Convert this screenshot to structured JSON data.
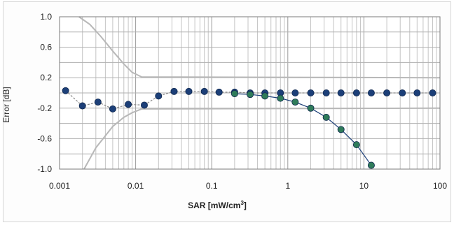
{
  "chart_data": {
    "type": "line",
    "xscale": "log",
    "xlabel": "SAR [mW/cm",
    "xlabel_sup": "3",
    "xlabel_close": "]",
    "ylabel": "Error [dB]",
    "xlim": [
      0.001,
      100
    ],
    "ylim": [
      -1.0,
      1.0
    ],
    "xticks": [
      {
        "v": 0.001,
        "label": "0.001"
      },
      {
        "v": 0.01,
        "label": "0.01"
      },
      {
        "v": 0.1,
        "label": "0.1"
      },
      {
        "v": 1,
        "label": "1"
      },
      {
        "v": 10,
        "label": "10"
      },
      {
        "v": 100,
        "label": "100"
      }
    ],
    "yticks": [
      {
        "v": 1.0,
        "label": "1.0"
      },
      {
        "v": 0.6,
        "label": "0.6"
      },
      {
        "v": 0.2,
        "label": "0.2"
      },
      {
        "v": -0.2,
        "label": "-0.2"
      },
      {
        "v": -0.6,
        "label": "-0.6"
      },
      {
        "v": -1.0,
        "label": "-1.0"
      }
    ],
    "grid": true,
    "series": [
      {
        "role": "limit-upper",
        "color": "#b8b8b8",
        "x": [
          0.0018,
          0.0025,
          0.0035,
          0.005,
          0.007,
          0.009,
          0.012,
          100
        ],
        "y": [
          1.0,
          0.9,
          0.74,
          0.55,
          0.38,
          0.27,
          0.21,
          0.2
        ]
      },
      {
        "role": "limit-lower",
        "color": "#b8b8b8",
        "x": [
          0.0021,
          0.003,
          0.005,
          0.007,
          0.009,
          0.012,
          100
        ],
        "y": [
          -1.0,
          -0.72,
          -0.44,
          -0.32,
          -0.26,
          -0.21,
          -0.2
        ]
      },
      {
        "role": "measured-flat",
        "color": "#1c3f78",
        "x": [
          0.0012,
          0.002,
          0.0032,
          0.005,
          0.008,
          0.013,
          0.02,
          0.032,
          0.05,
          0.08,
          0.125,
          0.2,
          0.32,
          0.5,
          0.8,
          1.25,
          2,
          3.2,
          5,
          8,
          12.5,
          20,
          32,
          50,
          80
        ],
        "y": [
          0.03,
          -0.17,
          -0.12,
          -0.21,
          -0.15,
          -0.16,
          -0.04,
          0.02,
          0.02,
          0.02,
          0.01,
          0.01,
          0.0,
          0.0,
          0.0,
          0.0,
          0.0,
          0.0,
          0.0,
          0.0,
          0.0,
          0.0,
          0.0,
          0.0,
          0.0
        ]
      },
      {
        "role": "measured-compressed",
        "color": "#2f7c5a",
        "x": [
          0.2,
          0.32,
          0.5,
          0.8,
          1.25,
          2,
          3.2,
          5,
          8,
          12.5
        ],
        "y": [
          -0.01,
          -0.02,
          -0.04,
          -0.07,
          -0.12,
          -0.2,
          -0.32,
          -0.48,
          -0.68,
          -0.95
        ]
      }
    ]
  }
}
